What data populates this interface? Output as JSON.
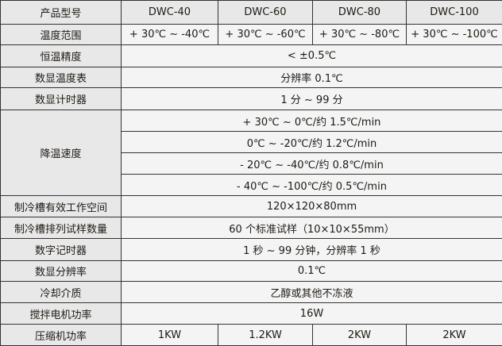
{
  "header": {
    "label": "产品型号",
    "models": [
      "DWC-40",
      "DWC-60",
      "DWC-80",
      "DWC-100"
    ]
  },
  "temp_range": {
    "label": "温度范围",
    "values": [
      "+ 30℃ ~ -40℃",
      "+ 30℃ ~ -60℃",
      "+ 30℃ ~ -80℃",
      "+ 30℃ ~ -100℃"
    ]
  },
  "constant_accuracy": {
    "label": "恒温精度",
    "value": "< ±0.5℃"
  },
  "digital_thermometer": {
    "label": "数显温度表",
    "value": "分辨率 0.1℃"
  },
  "digital_timer": {
    "label": "数显计时器",
    "value": "1 分 ~ 99 分"
  },
  "cooling_rate": {
    "label": "降温速度",
    "values": [
      "+ 30℃ ~ 0℃/约 1.5℃/min",
      "0℃ ~ -20℃/约 1.2℃/min",
      "- 20℃ ~ -40℃/约 0.8℃/min",
      "- 40℃ ~ -100℃/约 0.5℃/min"
    ]
  },
  "tank_space": {
    "label": "制冷槽有效工作空间",
    "value": "120×120×80mm"
  },
  "sample_count": {
    "label": "制冷槽排列试样数量",
    "value": "60 个标准试样（10×10×55mm）"
  },
  "digital_recorder": {
    "label": "数字记时器",
    "value": "1 秒 ~ 99 分钟，分辨率 1 秒"
  },
  "display_resolution": {
    "label": "数显分辨率",
    "value": "0.1℃"
  },
  "cooling_medium": {
    "label": "冷却介质",
    "value": "乙醇或其他不冻液"
  },
  "stirrer_power": {
    "label": "搅拌电机功率",
    "value": "16W"
  },
  "compressor_power": {
    "label": "压缩机功率",
    "values": [
      "1KW",
      "1.2KW",
      "2KW",
      "2KW"
    ]
  }
}
